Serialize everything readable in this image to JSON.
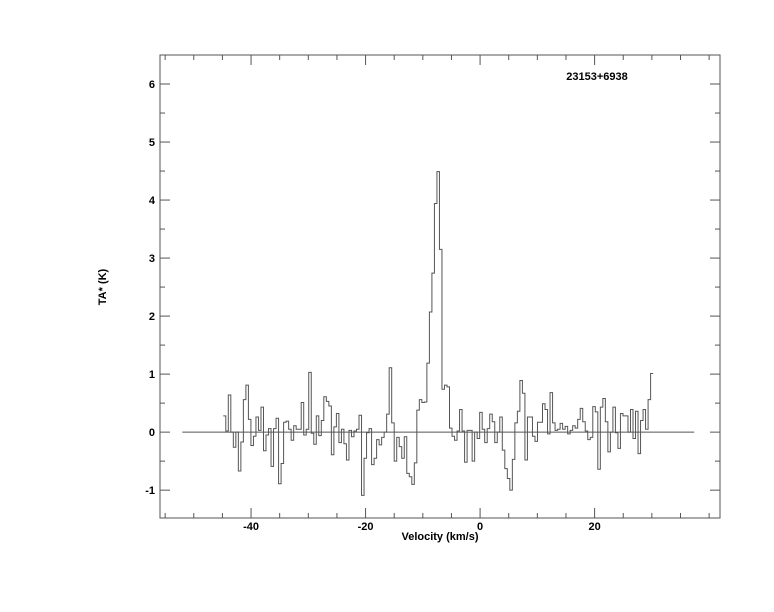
{
  "chart_data": {
    "type": "line",
    "style": "histogram-step",
    "annotation": "23153+6938",
    "xlabel": "Velocity (km/s)",
    "ylabel": "TA* (K)",
    "xlim": [
      -55.9,
      41.9
    ],
    "ylim": [
      -1.48,
      6.5
    ],
    "x_ticks": [
      -40,
      -20,
      0,
      20
    ],
    "x_tick_labels": [
      "-40",
      "-20",
      "0",
      "20"
    ],
    "x_minor_step": 5,
    "y_ticks": [
      -1,
      0,
      1,
      2,
      3,
      4,
      5,
      6
    ],
    "y_tick_labels": [
      "-1",
      "0",
      "1",
      "2",
      "3",
      "4",
      "5",
      "6"
    ],
    "y_minor_step": 0.5,
    "grid": false,
    "baseline": {
      "y": 0,
      "x_range": [
        -52,
        37.4
      ]
    },
    "series": [
      {
        "x_start": -44.85,
        "channel_width": 0.439,
        "values": [
          0.28,
          0.02,
          0.64,
          0.0,
          -0.26,
          0.0,
          -0.67,
          -0.17,
          0.56,
          0.81,
          0.22,
          -0.23,
          -0.07,
          0.26,
          0.03,
          0.43,
          -0.32,
          -0.05,
          0.06,
          -0.59,
          0.06,
          0.24,
          -0.89,
          -0.54,
          0.17,
          0.19,
          0.05,
          -0.14,
          0.11,
          0.05,
          0.05,
          0.51,
          -0.05,
          0.05,
          1.03,
          -0.02,
          -0.21,
          0.28,
          -0.06,
          0.2,
          0.61,
          0.53,
          0.45,
          -0.39,
          0.09,
          0.32,
          -0.18,
          0.05,
          -0.2,
          -0.48,
          0.03,
          -0.08,
          0.02,
          0.05,
          0.29,
          -1.09,
          -0.45,
          -0.01,
          0.06,
          -0.56,
          -0.45,
          -0.13,
          -0.22,
          -0.09,
          0.0,
          0.31,
          1.11,
          0.16,
          -0.5,
          -0.09,
          -0.25,
          -0.45,
          -0.08,
          -0.71,
          -0.77,
          -0.9,
          -0.53,
          0.38,
          0.56,
          0.51,
          0.52,
          1.19,
          2.07,
          2.74,
          3.94,
          4.49,
          3.15,
          0.74,
          0.81,
          0.78,
          0.07,
          -0.07,
          -0.14,
          0.02,
          0.39,
          0.02,
          -0.52,
          0.03,
          0.03,
          -0.5,
          0.0,
          -0.11,
          0.34,
          0.05,
          -0.18,
          0.06,
          0.31,
          0.18,
          -0.18,
          0.0,
          0.26,
          -0.31,
          -0.63,
          -0.8,
          -1.0,
          -0.47,
          0.16,
          0.36,
          0.89,
          0.67,
          -0.48,
          0.26,
          0.26,
          -0.07,
          -0.16,
          0.17,
          0.17,
          0.49,
          0.39,
          -0.03,
          0.68,
          0.16,
          0.03,
          0.05,
          0.15,
          0.05,
          0.1,
          -0.03,
          0.03,
          0.11,
          0.07,
          0.22,
          0.41,
          0.18,
          0.02,
          -0.13,
          -0.09,
          0.44,
          0.35,
          -0.64,
          0.43,
          0.58,
          0.18,
          -0.34,
          0.0,
          0.43,
          -0.01,
          -0.28,
          0.32,
          0.28,
          0.28,
          0.0,
          0.39,
          -0.11,
          0.36,
          -0.37,
          0.2,
          0.39,
          0.05,
          0.56,
          1.01
        ]
      }
    ],
    "colors": {
      "line": "#555555",
      "axes": "#555555",
      "text": "#000000"
    }
  }
}
